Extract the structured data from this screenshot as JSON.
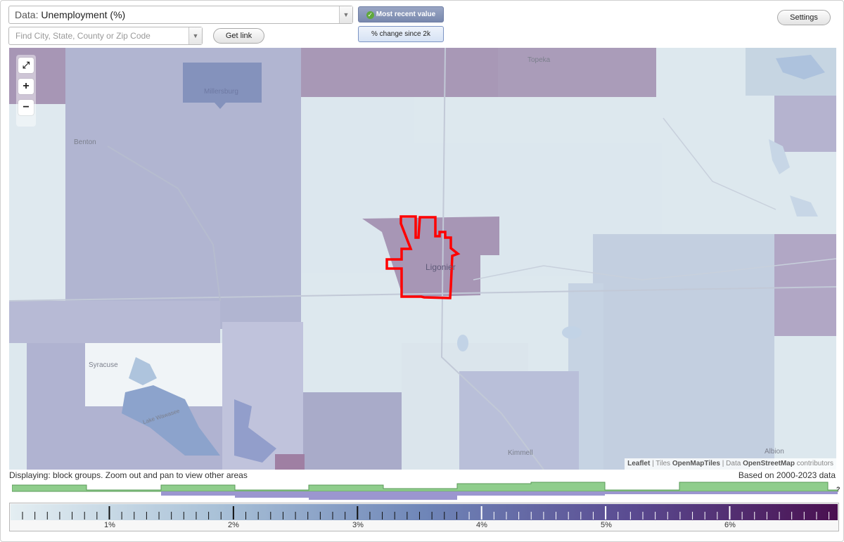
{
  "controls": {
    "data_prefix": "Data:",
    "data_value": "Unemployment (%)",
    "search_placeholder": "Find City, State, County or Zip Code",
    "get_link_label": "Get link",
    "toggle_recent": "Most recent value",
    "toggle_change": "% change since 2k",
    "settings_label": "Settings",
    "dropdown_arrow": "▼"
  },
  "map": {
    "zoom_fit": "⤢",
    "zoom_in": "+",
    "zoom_out": "−",
    "places": {
      "topeka": "Topeka",
      "millersburg": "Millersburg",
      "benton": "Benton",
      "ligonier": "Ligonier",
      "syracuse": "Syracuse",
      "lake_wawasee": "Lake Wawasee",
      "kimmell": "Kimmell",
      "albion": "Albion"
    },
    "attribution": {
      "leaflet": "Leaflet",
      "sep1": " | Tiles ",
      "tiles": "OpenMapTiles",
      "sep2": " | Data ",
      "data": "OpenStreetMap",
      "contrib": " contributors"
    },
    "highlight_color": "#ff0000"
  },
  "info": {
    "displaying": "Displaying: block groups. Zoom out and pan to view other areas",
    "based_on": "Based on 2000-2023 data",
    "unknown_mark": "?"
  },
  "legend": {
    "tick_labels": [
      "1%",
      "2%",
      "3%",
      "4%",
      "5%",
      "6%"
    ],
    "color_start": "#e4eef2",
    "color_mid": "#6f86b8",
    "color_end": "#4a1050"
  },
  "histogram": {
    "green_color": "#8fcd8c",
    "purple_color": "#9b96cf"
  }
}
